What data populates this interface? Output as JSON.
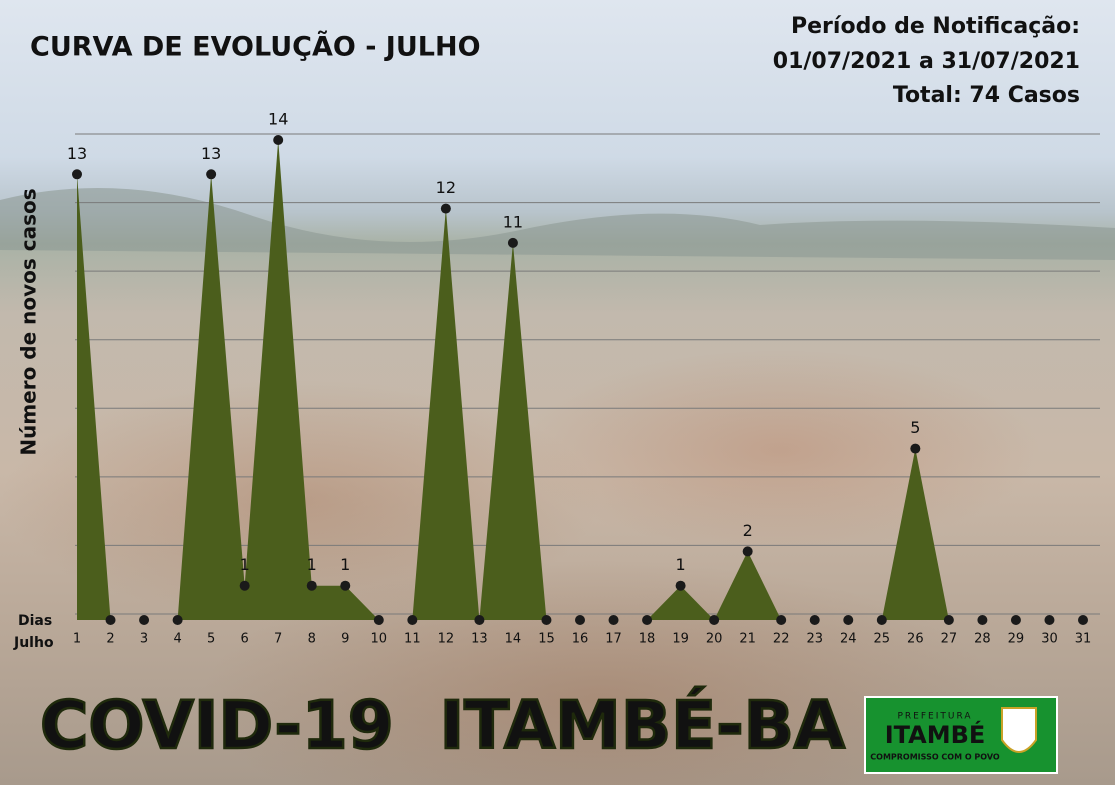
{
  "chart_data": {
    "type": "area",
    "title": "CURVA DE EVOLUÇÃO - JULHO",
    "notes": [
      "Período de Notificação:",
      "01/07/2021 a 31/07/2021",
      "Total: 74 Casos"
    ],
    "y_label": "Número de novos casos",
    "x_label": [
      "Dias",
      "Julho"
    ],
    "categories": [
      "1",
      "2",
      "3",
      "4",
      "5",
      "6",
      "7",
      "8",
      "9",
      "10",
      "11",
      "12",
      "13",
      "14",
      "15",
      "16",
      "17",
      "18",
      "19",
      "20",
      "21",
      "22",
      "23",
      "24",
      "25",
      "26",
      "27",
      "28",
      "29",
      "30",
      "31"
    ],
    "values": [
      13,
      0,
      0,
      0,
      13,
      1,
      14,
      1,
      1,
      0,
      0,
      12,
      0,
      11,
      0,
      0,
      0,
      0,
      1,
      0,
      2,
      0,
      0,
      0,
      0,
      5,
      0,
      0,
      0,
      0,
      0
    ],
    "color": "#4b5e1c",
    "marker_color": "#1a1a1a",
    "ylim": [
      0,
      14
    ],
    "yticks": [
      0,
      2,
      4,
      6,
      8,
      10,
      12,
      14
    ],
    "grid": true,
    "label_nonzero": true
  },
  "footer": {
    "banner": "COVID-19  ITAMBÉ-BA",
    "logo_top": "PREFEITURA",
    "logo_name": "ITAMBÉ",
    "logo_motto": "COMPROMISSO COM O POVO"
  }
}
